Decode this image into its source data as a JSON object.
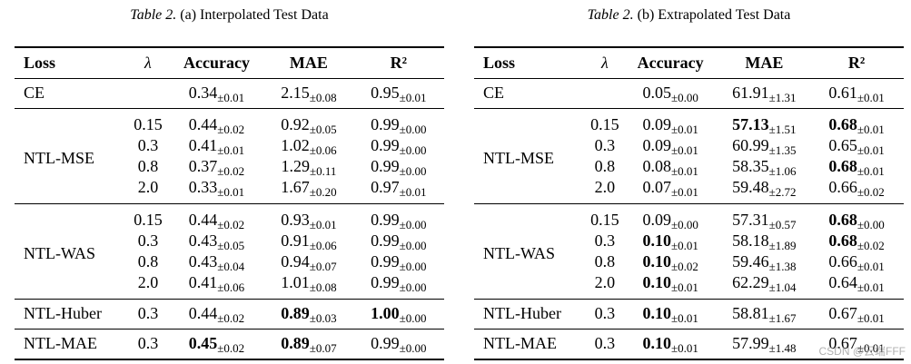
{
  "tables": [
    {
      "caption_label": "Table 2.",
      "caption_text": "(a) Interpolated Test Data",
      "headers": [
        "Loss",
        "λ",
        "Accuracy",
        "MAE",
        "R²"
      ],
      "groups": [
        {
          "loss": "CE",
          "rows": [
            {
              "lambda": "",
              "acc": "0.34",
              "acc_sd": "±0.01",
              "mae": "2.15",
              "mae_sd": "±0.08",
              "r2": "0.95",
              "r2_sd": "±0.01"
            }
          ]
        },
        {
          "loss": "NTL-MSE",
          "rows": [
            {
              "lambda": "0.15",
              "acc": "0.44",
              "acc_sd": "±0.02",
              "mae": "0.92",
              "mae_sd": "±0.05",
              "r2": "0.99",
              "r2_sd": "±0.00"
            },
            {
              "lambda": "0.3",
              "acc": "0.41",
              "acc_sd": "±0.01",
              "mae": "1.02",
              "mae_sd": "±0.06",
              "r2": "0.99",
              "r2_sd": "±0.00"
            },
            {
              "lambda": "0.8",
              "acc": "0.37",
              "acc_sd": "±0.02",
              "mae": "1.29",
              "mae_sd": "±0.11",
              "r2": "0.99",
              "r2_sd": "±0.00"
            },
            {
              "lambda": "2.0",
              "acc": "0.33",
              "acc_sd": "±0.01",
              "mae": "1.67",
              "mae_sd": "±0.20",
              "r2": "0.97",
              "r2_sd": "±0.01"
            }
          ]
        },
        {
          "loss": "NTL-WAS",
          "rows": [
            {
              "lambda": "0.15",
              "acc": "0.44",
              "acc_sd": "±0.02",
              "mae": "0.93",
              "mae_sd": "±0.01",
              "r2": "0.99",
              "r2_sd": "±0.00"
            },
            {
              "lambda": "0.3",
              "acc": "0.43",
              "acc_sd": "±0.05",
              "mae": "0.91",
              "mae_sd": "±0.06",
              "r2": "0.99",
              "r2_sd": "±0.00"
            },
            {
              "lambda": "0.8",
              "acc": "0.43",
              "acc_sd": "±0.04",
              "mae": "0.94",
              "mae_sd": "±0.07",
              "r2": "0.99",
              "r2_sd": "±0.00"
            },
            {
              "lambda": "2.0",
              "acc": "0.41",
              "acc_sd": "±0.06",
              "mae": "1.01",
              "mae_sd": "±0.08",
              "r2": "0.99",
              "r2_sd": "±0.00"
            }
          ]
        },
        {
          "loss": "NTL-Huber",
          "rows": [
            {
              "lambda": "0.3",
              "acc": "0.44",
              "acc_sd": "±0.02",
              "mae": "0.89",
              "mae_sd": "±0.03",
              "mae_bold": true,
              "r2": "1.00",
              "r2_sd": "±0.00",
              "r2_bold": true
            }
          ]
        },
        {
          "loss": "NTL-MAE",
          "rows": [
            {
              "lambda": "0.3",
              "acc": "0.45",
              "acc_sd": "±0.02",
              "acc_bold": true,
              "mae": "0.89",
              "mae_sd": "±0.07",
              "mae_bold": true,
              "r2": "0.99",
              "r2_sd": "±0.00"
            }
          ]
        }
      ]
    },
    {
      "caption_label": "Table 2.",
      "caption_text": "(b) Extrapolated Test Data",
      "headers": [
        "Loss",
        "λ",
        "Accuracy",
        "MAE",
        "R²"
      ],
      "groups": [
        {
          "loss": "CE",
          "rows": [
            {
              "lambda": "",
              "acc": "0.05",
              "acc_sd": "±0.00",
              "mae": "61.91",
              "mae_sd": "±1.31",
              "r2": "0.61",
              "r2_sd": "±0.01"
            }
          ]
        },
        {
          "loss": "NTL-MSE",
          "rows": [
            {
              "lambda": "0.15",
              "acc": "0.09",
              "acc_sd": "±0.01",
              "mae": "57.13",
              "mae_sd": "±1.51",
              "mae_bold": true,
              "r2": "0.68",
              "r2_sd": "±0.01",
              "r2_bold": true
            },
            {
              "lambda": "0.3",
              "acc": "0.09",
              "acc_sd": "±0.01",
              "mae": "60.99",
              "mae_sd": "±1.35",
              "r2": "0.65",
              "r2_sd": "±0.01"
            },
            {
              "lambda": "0.8",
              "acc": "0.08",
              "acc_sd": "±0.01",
              "mae": "58.35",
              "mae_sd": "±1.06",
              "r2": "0.68",
              "r2_sd": "±0.01",
              "r2_bold": true
            },
            {
              "lambda": "2.0",
              "acc": "0.07",
              "acc_sd": "±0.01",
              "mae": "59.48",
              "mae_sd": "±2.72",
              "r2": "0.66",
              "r2_sd": "±0.02"
            }
          ]
        },
        {
          "loss": "NTL-WAS",
          "rows": [
            {
              "lambda": "0.15",
              "acc": "0.09",
              "acc_sd": "±0.00",
              "mae": "57.31",
              "mae_sd": "±0.57",
              "r2": "0.68",
              "r2_sd": "±0.00",
              "r2_bold": true
            },
            {
              "lambda": "0.3",
              "acc": "0.10",
              "acc_sd": "±0.01",
              "acc_bold": true,
              "mae": "58.18",
              "mae_sd": "±1.89",
              "r2": "0.68",
              "r2_sd": "±0.02",
              "r2_bold": true
            },
            {
              "lambda": "0.8",
              "acc": "0.10",
              "acc_sd": "±0.02",
              "acc_bold": true,
              "mae": "59.46",
              "mae_sd": "±1.38",
              "r2": "0.66",
              "r2_sd": "±0.01"
            },
            {
              "lambda": "2.0",
              "acc": "0.10",
              "acc_sd": "±0.01",
              "acc_bold": true,
              "mae": "62.29",
              "mae_sd": "±1.04",
              "r2": "0.64",
              "r2_sd": "±0.01"
            }
          ]
        },
        {
          "loss": "NTL-Huber",
          "rows": [
            {
              "lambda": "0.3",
              "acc": "0.10",
              "acc_sd": "±0.01",
              "acc_bold": true,
              "mae": "58.81",
              "mae_sd": "±1.67",
              "r2": "0.67",
              "r2_sd": "±0.01"
            }
          ]
        },
        {
          "loss": "NTL-MAE",
          "rows": [
            {
              "lambda": "0.3",
              "acc": "0.10",
              "acc_sd": "±0.01",
              "acc_bold": true,
              "mae": "57.99",
              "mae_sd": "±1.48",
              "r2": "0.67",
              "r2_sd": "±0.01"
            }
          ]
        }
      ]
    }
  ],
  "watermark": "CSDN @云端FFF"
}
